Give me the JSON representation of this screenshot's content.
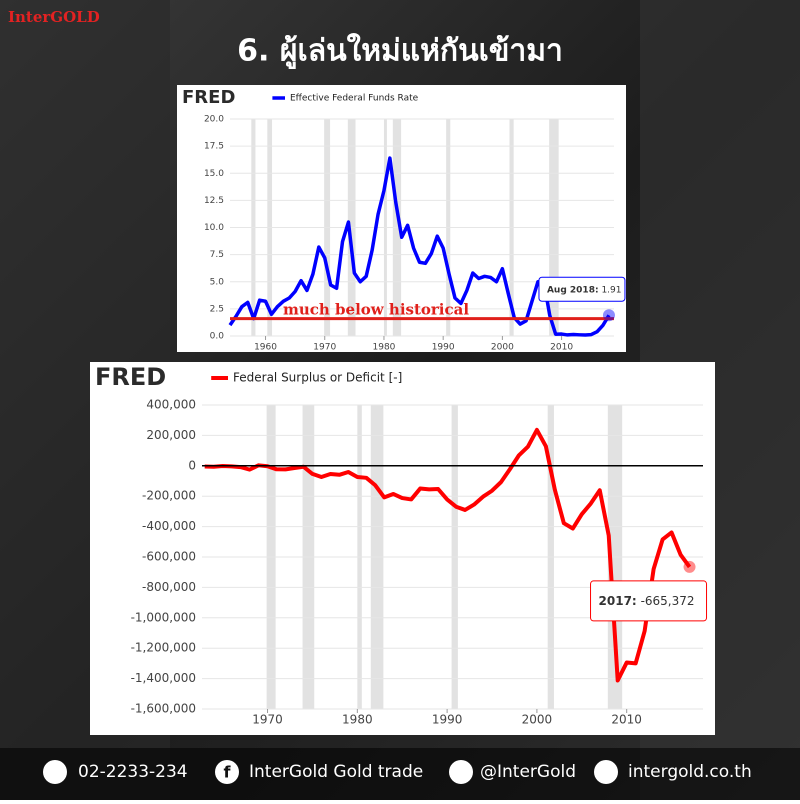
{
  "header": {
    "logo": "InterGOLD",
    "title": "6.  ผู้เล่นใหม่แห่กันเข้ามา"
  },
  "chart_data": [
    {
      "type": "line",
      "source": "FRED",
      "x": [
        1954,
        1955,
        1956,
        1957,
        1958,
        1959,
        1960,
        1961,
        1962,
        1963,
        1964,
        1965,
        1966,
        1967,
        1968,
        1969,
        1970,
        1971,
        1972,
        1973,
        1974,
        1975,
        1976,
        1977,
        1978,
        1979,
        1980,
        1981,
        1982,
        1983,
        1984,
        1985,
        1986,
        1987,
        1988,
        1989,
        1990,
        1991,
        1992,
        1993,
        1994,
        1995,
        1996,
        1997,
        1998,
        1999,
        2000,
        2001,
        2002,
        2003,
        2004,
        2005,
        2006,
        2007,
        2008,
        2009,
        2010,
        2011,
        2012,
        2013,
        2014,
        2015,
        2016,
        2017,
        2018
      ],
      "series": [
        {
          "name": "Effective Federal Funds Rate",
          "color": "#0000ff",
          "values": [
            1.0,
            1.8,
            2.7,
            3.1,
            1.6,
            3.3,
            3.2,
            2.0,
            2.7,
            3.2,
            3.5,
            4.1,
            5.1,
            4.2,
            5.7,
            8.2,
            7.2,
            4.7,
            4.4,
            8.7,
            10.5,
            5.8,
            5.0,
            5.5,
            7.9,
            11.2,
            13.4,
            16.4,
            12.3,
            9.1,
            10.2,
            8.1,
            6.8,
            6.7,
            7.6,
            9.2,
            8.1,
            5.7,
            3.5,
            3.0,
            4.2,
            5.8,
            5.3,
            5.5,
            5.4,
            5.0,
            6.2,
            3.9,
            1.7,
            1.1,
            1.4,
            3.2,
            5.0,
            5.0,
            1.9,
            0.16,
            0.18,
            0.1,
            0.14,
            0.11,
            0.09,
            0.13,
            0.4,
            1.0,
            1.91
          ]
        }
      ],
      "xlim": [
        1954,
        2018.85
      ],
      "xticks": [
        1960,
        1970,
        1980,
        1990,
        2000,
        2010
      ],
      "ylim": [
        0,
        20
      ],
      "yticks": [
        {
          "value": 0,
          "label": "0.0"
        },
        2.5,
        {
          "value": 5,
          "label": "5.0"
        },
        7.5,
        {
          "value": 10,
          "label": "10.0"
        },
        12.5,
        {
          "value": 15,
          "label": "15.0"
        },
        17.5,
        {
          "value": 20,
          "label": "20.0"
        }
      ],
      "grid": true,
      "recessions": [
        [
          1957.6,
          1958.3
        ],
        [
          1960.3,
          1961.1
        ],
        [
          1969.9,
          1970.9
        ],
        [
          1973.9,
          1975.2
        ],
        [
          1980.0,
          1980.5
        ],
        [
          1981.5,
          1982.9
        ],
        [
          1990.5,
          1991.2
        ],
        [
          2001.2,
          2001.9
        ],
        [
          2007.9,
          2009.5
        ]
      ],
      "hline": 1.6,
      "hline_color": "#e0201b",
      "annotation": "much below historical",
      "tooltip": {
        "label": "Aug 2018:",
        "value_label": "1.91"
      }
    },
    {
      "type": "line",
      "source": "FRED",
      "x": [
        1963,
        1964,
        1965,
        1966,
        1967,
        1968,
        1969,
        1970,
        1971,
        1972,
        1973,
        1974,
        1975,
        1976,
        1977,
        1978,
        1979,
        1980,
        1981,
        1982,
        1983,
        1984,
        1985,
        1986,
        1987,
        1988,
        1989,
        1990,
        1991,
        1992,
        1993,
        1994,
        1995,
        1996,
        1997,
        1998,
        1999,
        2000,
        2001,
        2002,
        2003,
        2004,
        2005,
        2006,
        2007,
        2008,
        2009,
        2010,
        2011,
        2012,
        2013,
        2014,
        2015,
        2016,
        2017
      ],
      "series": [
        {
          "name": "Federal Surplus or Deficit [-]",
          "color": "#ff0000",
          "values": [
            -4800,
            -5900,
            -1400,
            -3700,
            -8600,
            -25200,
            3200,
            -2800,
            -23000,
            -23400,
            -14900,
            -6100,
            -53200,
            -73700,
            -53700,
            -59200,
            -40700,
            -73800,
            -79000,
            -128000,
            -207800,
            -185400,
            -212300,
            -221200,
            -149700,
            -155200,
            -152600,
            -221000,
            -269200,
            -290300,
            -255100,
            -203200,
            -164000,
            -107400,
            -21900,
            69300,
            125600,
            236200,
            128200,
            -157800,
            -377600,
            -412700,
            -318300,
            -248200,
            -160700,
            -458600,
            -1412700,
            -1294400,
            -1299600,
            -1087000,
            -679500,
            -484600,
            -438500,
            -584700,
            -665372
          ]
        }
      ],
      "xlim": [
        1962.7,
        2018.5
      ],
      "xticks": [
        1970,
        1980,
        1990,
        2000,
        2010
      ],
      "ylim": [
        -1600000,
        400000
      ],
      "yticks": [
        {
          "value": 400000,
          "label": "400,000"
        },
        {
          "value": 200000,
          "label": "200,000"
        },
        0,
        {
          "value": -200000,
          "label": "-200,000"
        },
        {
          "value": -400000,
          "label": "-400,000"
        },
        {
          "value": -600000,
          "label": "-600,000"
        },
        {
          "value": -800000,
          "label": "-800,000"
        },
        {
          "value": -1000000,
          "label": "-1,000,000"
        },
        {
          "value": -1200000,
          "label": "-1,200,000"
        },
        {
          "value": -1400000,
          "label": "-1,400,000"
        },
        {
          "value": -1600000,
          "label": "-1,600,000"
        }
      ],
      "grid": true,
      "recessions": [
        [
          1969.9,
          1970.9
        ],
        [
          1973.9,
          1975.2
        ],
        [
          1980.0,
          1980.5
        ],
        [
          1981.5,
          1982.9
        ],
        [
          1990.5,
          1991.2
        ],
        [
          2001.2,
          2001.9
        ],
        [
          2007.9,
          2009.5
        ]
      ],
      "hline": 0,
      "hline_color": "#000000",
      "tooltip": {
        "label": "2017:",
        "value_label": "-665,372"
      }
    }
  ],
  "footer": {
    "phone": "02-2233-234",
    "facebook": "InterGold Gold trade",
    "line": "@InterGold",
    "website": "intergold.co.th"
  }
}
